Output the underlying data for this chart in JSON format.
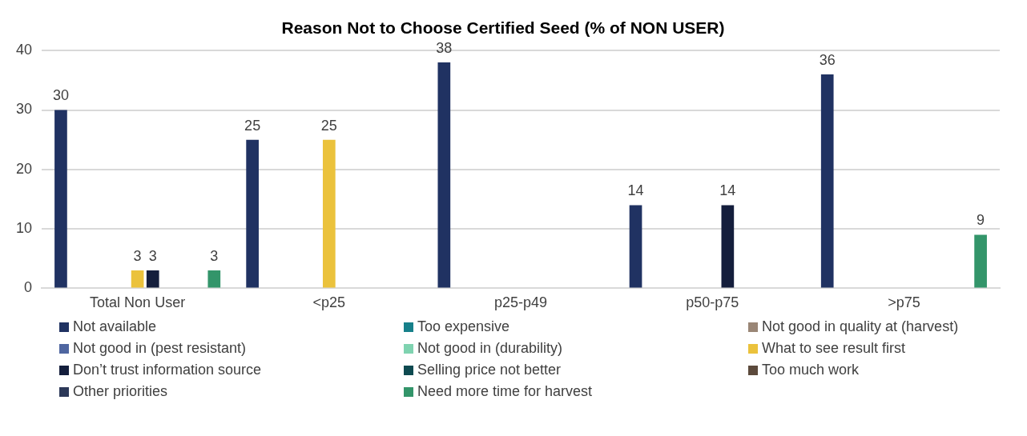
{
  "chart_data": {
    "type": "bar",
    "title": "Reason Not to Choose Certified Seed (% of NON USER)",
    "categories": [
      "Total Non User",
      "<p25",
      "p25-p49",
      "p50-p75",
      ">p75"
    ],
    "series": [
      {
        "name": "Not available",
        "color": "#203262",
        "values": [
          30,
          25,
          38,
          14,
          36
        ]
      },
      {
        "name": "Too expensive",
        "color": "#17808a",
        "values": [
          null,
          null,
          null,
          null,
          null
        ]
      },
      {
        "name": "Not good in quality at (harvest)",
        "color": "#9a8676",
        "values": [
          null,
          null,
          null,
          null,
          null
        ]
      },
      {
        "name": "Not good in (pest resistant)",
        "color": "#4f66a0",
        "values": [
          null,
          null,
          null,
          null,
          null
        ]
      },
      {
        "name": "Not good in (durability)",
        "color": "#7fd3b0",
        "values": [
          null,
          null,
          null,
          null,
          null
        ]
      },
      {
        "name": "What to see result first",
        "color": "#ebc23c",
        "values": [
          3,
          25,
          null,
          null,
          null
        ]
      },
      {
        "name": "Don’t trust information source",
        "color": "#141e3c",
        "values": [
          3,
          null,
          null,
          14,
          null
        ]
      },
      {
        "name": "Selling price not better",
        "color": "#0e4a50",
        "values": [
          null,
          null,
          null,
          null,
          null
        ]
      },
      {
        "name": "Too much work",
        "color": "#5c4a3c",
        "values": [
          null,
          null,
          null,
          null,
          null
        ]
      },
      {
        "name": "Other priorities",
        "color": "#2c3858",
        "values": [
          null,
          null,
          null,
          null,
          null
        ]
      },
      {
        "name": "Need more time for harvest",
        "color": "#33956a",
        "values": [
          3,
          null,
          null,
          null,
          9
        ]
      }
    ],
    "ylim": [
      0,
      40
    ],
    "yticks": [
      0,
      10,
      20,
      30,
      40
    ],
    "grid": "y",
    "legend": "bottom",
    "data_labels": true
  }
}
